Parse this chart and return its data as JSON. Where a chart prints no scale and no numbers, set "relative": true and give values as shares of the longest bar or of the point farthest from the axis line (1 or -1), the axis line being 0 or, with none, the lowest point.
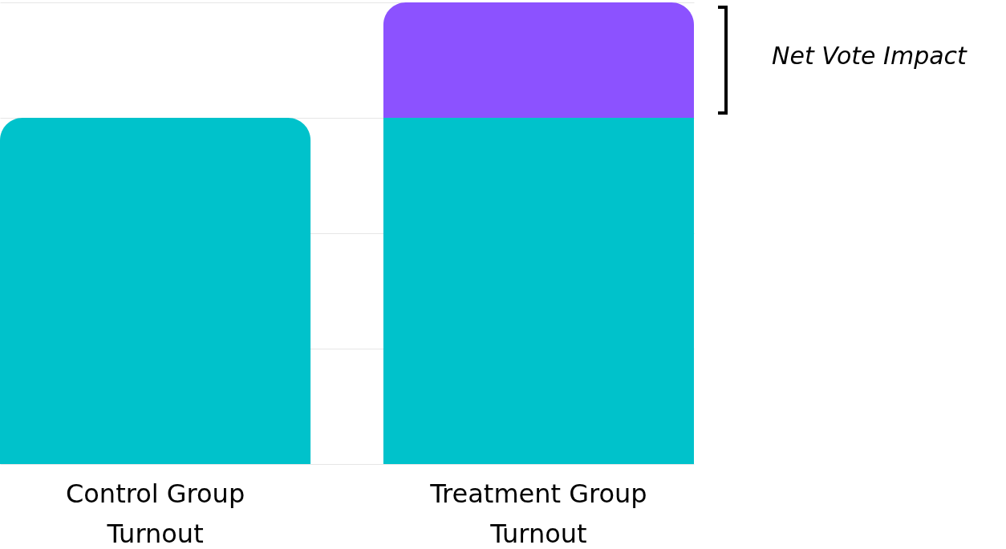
{
  "chart_data": {
    "type": "bar",
    "relative": true,
    "stacked": true,
    "grid": "y",
    "categories": [
      "Control Group Turnout",
      "Treatment Group Turnout"
    ],
    "series": [
      {
        "color": "#00c2cb",
        "values": [
          0.75,
          0.75
        ]
      },
      {
        "color": "#8c52ff",
        "values": [
          null,
          0.25
        ]
      }
    ],
    "annotations": [
      "Net Vote Impact"
    ]
  }
}
